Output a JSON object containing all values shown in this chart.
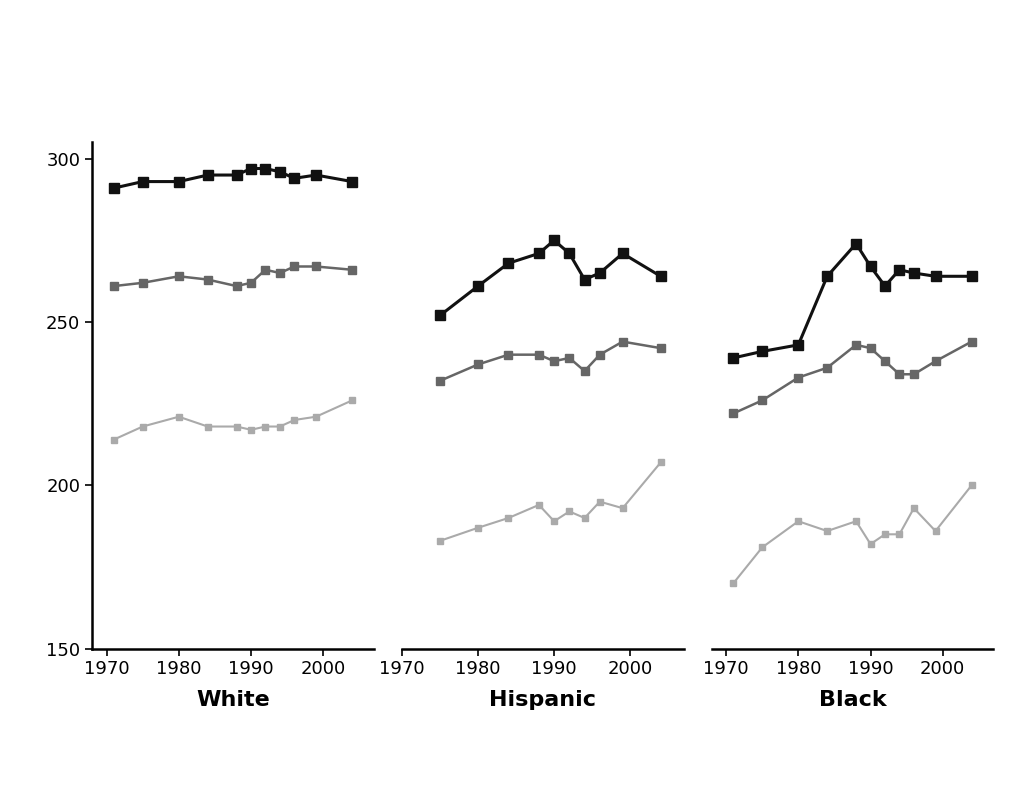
{
  "background_color": "#ffffff",
  "ylim": [
    150,
    305
  ],
  "yticks": [
    150,
    200,
    250,
    300
  ],
  "panels": [
    {
      "label": "White",
      "xlim": [
        1968,
        2007
      ],
      "age17": {
        "years": [
          1971,
          1975,
          1980,
          1984,
          1988,
          1990,
          1992,
          1994,
          1996,
          1999,
          2004
        ],
        "scores": [
          291,
          293,
          293,
          295,
          295,
          297,
          297,
          296,
          294,
          295,
          293
        ],
        "color": "#111111",
        "linewidth": 2.2,
        "markersize": 7
      },
      "age13": {
        "years": [
          1971,
          1975,
          1980,
          1984,
          1988,
          1990,
          1992,
          1994,
          1996,
          1999,
          2004
        ],
        "scores": [
          261,
          262,
          264,
          263,
          261,
          262,
          266,
          265,
          267,
          267,
          266
        ],
        "color": "#666666",
        "linewidth": 1.8,
        "markersize": 6
      },
      "age9": {
        "years": [
          1971,
          1975,
          1980,
          1984,
          1988,
          1990,
          1992,
          1994,
          1996,
          1999,
          2004
        ],
        "scores": [
          214,
          218,
          221,
          218,
          218,
          217,
          218,
          218,
          220,
          221,
          226
        ],
        "color": "#aaaaaa",
        "linewidth": 1.5,
        "markersize": 5
      }
    },
    {
      "label": "Hispanic",
      "xlim": [
        1973,
        2007
      ],
      "age17": {
        "years": [
          1975,
          1980,
          1984,
          1988,
          1990,
          1992,
          1994,
          1996,
          1999,
          2004
        ],
        "scores": [
          252,
          261,
          268,
          271,
          275,
          271,
          263,
          265,
          271,
          264
        ],
        "color": "#111111",
        "linewidth": 2.2,
        "markersize": 7
      },
      "age13": {
        "years": [
          1975,
          1980,
          1984,
          1988,
          1990,
          1992,
          1994,
          1996,
          1999,
          2004
        ],
        "scores": [
          232,
          237,
          240,
          240,
          238,
          239,
          235,
          240,
          244,
          242
        ],
        "color": "#666666",
        "linewidth": 1.8,
        "markersize": 6
      },
      "age9": {
        "years": [
          1975,
          1980,
          1984,
          1988,
          1990,
          1992,
          1994,
          1996,
          1999,
          2004
        ],
        "scores": [
          183,
          187,
          190,
          194,
          189,
          192,
          190,
          195,
          193,
          207
        ],
        "color": "#aaaaaa",
        "linewidth": 1.5,
        "markersize": 5
      }
    },
    {
      "label": "Black",
      "xlim": [
        1968,
        2007
      ],
      "age17": {
        "years": [
          1971,
          1975,
          1980,
          1984,
          1988,
          1990,
          1992,
          1994,
          1996,
          1999,
          2004
        ],
        "scores": [
          239,
          241,
          243,
          264,
          274,
          267,
          261,
          266,
          265,
          264,
          264
        ],
        "color": "#111111",
        "linewidth": 2.2,
        "markersize": 7
      },
      "age13": {
        "years": [
          1971,
          1975,
          1980,
          1984,
          1988,
          1990,
          1992,
          1994,
          1996,
          1999,
          2004
        ],
        "scores": [
          222,
          226,
          233,
          236,
          243,
          242,
          238,
          234,
          234,
          238,
          244
        ],
        "color": "#666666",
        "linewidth": 1.8,
        "markersize": 6
      },
      "age9": {
        "years": [
          1971,
          1975,
          1980,
          1984,
          1988,
          1990,
          1992,
          1994,
          1996,
          1999,
          2004
        ],
        "scores": [
          170,
          181,
          189,
          186,
          189,
          182,
          185,
          185,
          193,
          186,
          200
        ],
        "color": "#aaaaaa",
        "linewidth": 1.5,
        "markersize": 5
      }
    }
  ],
  "xticks": [
    1970,
    1980,
    1990,
    2000
  ],
  "tick_fontsize": 13,
  "label_fontsize": 16,
  "ytick_fontsize": 13,
  "spine_linewidth": 1.8
}
